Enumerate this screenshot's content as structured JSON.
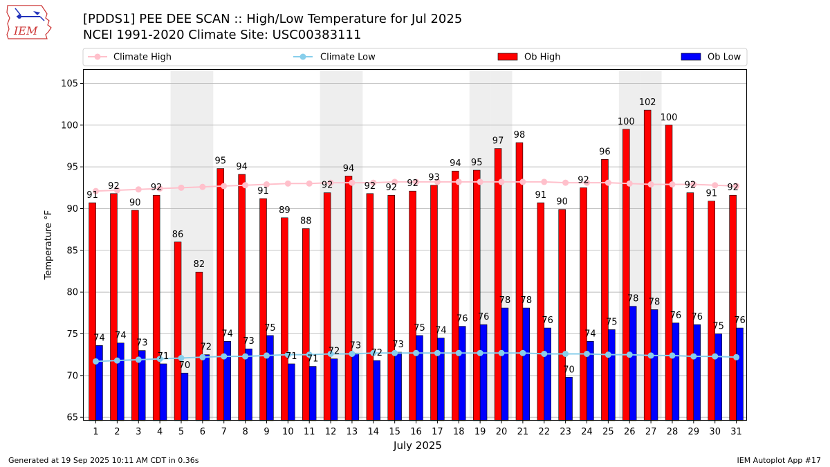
{
  "header": {
    "title_line1": "[PDDS1] PEE DEE SCAN :: High/Low Temperature for Jul 2025",
    "title_line2": "NCEI 1991-2020 Climate Site: USC00383111",
    "logo_text": "IEM"
  },
  "footer": {
    "generated": "Generated at 19 Sep 2025 10:11 AM CDT in 0.36s",
    "app": "IEM Autoplot App #17"
  },
  "colors": {
    "ob_high": "#ff0000",
    "ob_low": "#0000ff",
    "climate_high": "#ffc0cb",
    "climate_low": "#87ceeb",
    "weekend_shade": "#eeeeee",
    "grid": "#b0b0b0"
  },
  "chart_data": {
    "type": "bar",
    "xlabel": "July 2025",
    "ylabel": "Temperature °F",
    "ylim": [
      64.6,
      106.7
    ],
    "yticks": [
      65,
      70,
      75,
      80,
      85,
      90,
      95,
      100,
      105
    ],
    "grid": "horizontal",
    "legend": "top, above plot",
    "shaded_days": [
      5,
      6,
      12,
      13,
      19,
      20,
      26,
      27
    ],
    "categories": [
      "1",
      "2",
      "3",
      "4",
      "5",
      "6",
      "7",
      "8",
      "9",
      "10",
      "11",
      "12",
      "13",
      "14",
      "15",
      "16",
      "17",
      "18",
      "19",
      "20",
      "21",
      "22",
      "23",
      "24",
      "25",
      "26",
      "27",
      "28",
      "29",
      "30",
      "31"
    ],
    "series": [
      {
        "name": "Climate High",
        "type": "line",
        "values": [
          92.1,
          92.2,
          92.3,
          92.4,
          92.5,
          92.6,
          92.7,
          92.8,
          92.9,
          93.0,
          93.0,
          93.1,
          93.1,
          93.1,
          93.2,
          93.2,
          93.2,
          93.2,
          93.2,
          93.2,
          93.2,
          93.2,
          93.1,
          93.1,
          93.1,
          93.0,
          92.9,
          92.9,
          92.9,
          92.8,
          92.7
        ]
      },
      {
        "name": "Climate Low",
        "type": "line",
        "values": [
          71.7,
          71.8,
          71.9,
          72.0,
          72.1,
          72.2,
          72.3,
          72.3,
          72.4,
          72.5,
          72.5,
          72.6,
          72.6,
          72.7,
          72.7,
          72.7,
          72.7,
          72.7,
          72.7,
          72.7,
          72.7,
          72.6,
          72.6,
          72.6,
          72.5,
          72.5,
          72.4,
          72.4,
          72.3,
          72.3,
          72.2
        ]
      },
      {
        "name": "Ob High",
        "type": "bar",
        "values": [
          90.7,
          91.8,
          89.8,
          91.6,
          86.0,
          82.4,
          94.8,
          94.1,
          91.2,
          88.9,
          87.6,
          91.9,
          93.9,
          91.8,
          91.6,
          92.1,
          92.8,
          94.5,
          94.6,
          97.2,
          97.9,
          90.7,
          89.9,
          92.5,
          95.9,
          99.5,
          101.8,
          100.0,
          91.9,
          90.9,
          91.6
        ],
        "labels": [
          "91",
          "92",
          "90",
          "92",
          "86",
          "82",
          "95",
          "94",
          "91",
          "89",
          "88",
          "92",
          "94",
          "92",
          "92",
          "92",
          "93",
          "94",
          "95",
          "97",
          "98",
          "91",
          "90",
          "92",
          "96",
          "100",
          "102",
          "100",
          "92",
          "91",
          "92"
        ]
      },
      {
        "name": "Ob Low",
        "type": "bar",
        "values": [
          73.6,
          73.9,
          73.0,
          71.4,
          70.3,
          72.5,
          74.1,
          73.2,
          74.8,
          71.4,
          71.1,
          72.0,
          72.7,
          71.8,
          72.8,
          74.8,
          74.5,
          75.9,
          76.1,
          78.1,
          78.1,
          75.7,
          69.8,
          74.1,
          75.5,
          78.3,
          77.9,
          76.3,
          76.1,
          75.0,
          75.7
        ],
        "labels": [
          "74",
          "74",
          "73",
          "71",
          "70",
          "72",
          "74",
          "73",
          "75",
          "71",
          "71",
          "72",
          "73",
          "72",
          "73",
          "75",
          "74",
          "76",
          "76",
          "78",
          "78",
          "76",
          "70",
          "74",
          "75",
          "78",
          "78",
          "76",
          "76",
          "75",
          "76"
        ]
      }
    ]
  }
}
